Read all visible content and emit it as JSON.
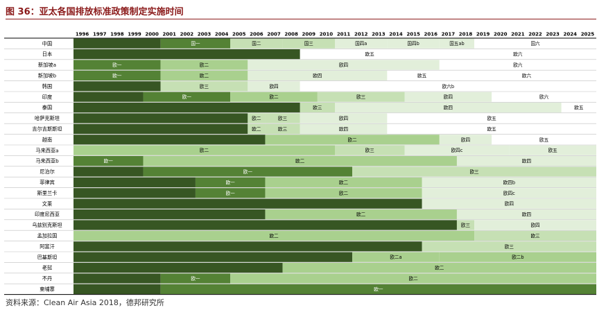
{
  "title": "图 36：亚太各国排放标准政策制定实施时间",
  "source": "资料来源：Clean Air Asia 2018，德邦研究所",
  "chart_data": {
    "type": "timeline",
    "years": [
      "1996",
      "1997",
      "1998",
      "1999",
      "2000",
      "2001",
      "2002",
      "2003",
      "2004",
      "2005",
      "2006",
      "2007",
      "2008",
      "2009",
      "2010",
      "2011",
      "2012",
      "2013",
      "2014",
      "2015",
      "2016",
      "2017",
      "2018",
      "2019",
      "2020",
      "2021",
      "2022",
      "2023",
      "2024",
      "2025"
    ],
    "colors": {
      "none": "#375623",
      "l1": "#548235",
      "l2": "#a9d08e",
      "l3": "#c6e0b4",
      "l4": "#e2efda",
      "l5": "#ffffff"
    },
    "rows": [
      {
        "country": "中国",
        "segments": [
          {
            "start": 1996,
            "end": 2000
          },
          {
            "start": 2001,
            "end": 2004,
            "label": "国一",
            "level": "l1"
          },
          {
            "start": 2005,
            "end": 2007,
            "label": "国二",
            "level": "l3"
          },
          {
            "start": 2008,
            "end": 2010,
            "label": "国三",
            "level": "l3"
          },
          {
            "start": 2011,
            "end": 2013,
            "label": "国四a",
            "level": "l4"
          },
          {
            "start": 2014,
            "end": 2016,
            "label": "国四b",
            "level": "l4"
          },
          {
            "start": 2017,
            "end": 2018,
            "label": "国五ab",
            "level": "l4"
          },
          {
            "start": 2019,
            "end": 2025,
            "label": "国六",
            "level": "l5"
          }
        ]
      },
      {
        "country": "日本",
        "segments": [
          {
            "start": 1996,
            "end": 2008
          },
          {
            "start": 2009,
            "end": 2016,
            "label": "欧五",
            "level": "l5"
          },
          {
            "start": 2017,
            "end": 2025,
            "label": "欧六",
            "level": "l5"
          }
        ]
      },
      {
        "country": "新加坡a",
        "segments": [
          {
            "start": 1996,
            "end": 2000,
            "label": "欧一",
            "level": "l1"
          },
          {
            "start": 2001,
            "end": 2005,
            "label": "欧二",
            "level": "l2"
          },
          {
            "start": 2006,
            "end": 2016,
            "label": "欧四",
            "level": "l4"
          },
          {
            "start": 2017,
            "end": 2025,
            "label": "欧六",
            "level": "l5"
          }
        ]
      },
      {
        "country": "新加坡b",
        "segments": [
          {
            "start": 1996,
            "end": 2000,
            "label": "欧一",
            "level": "l1"
          },
          {
            "start": 2001,
            "end": 2005,
            "label": "欧二",
            "level": "l2"
          },
          {
            "start": 2006,
            "end": 2013,
            "label": "欧四",
            "level": "l4"
          },
          {
            "start": 2014,
            "end": 2017,
            "label": "欧五",
            "level": "l5"
          },
          {
            "start": 2018,
            "end": 2025,
            "label": "欧六",
            "level": "l5"
          }
        ]
      },
      {
        "country": "韩国",
        "segments": [
          {
            "start": 1996,
            "end": 2000
          },
          {
            "start": 2001,
            "end": 2005,
            "label": "欧三",
            "level": "l3"
          },
          {
            "start": 2006,
            "end": 2008,
            "label": "欧四",
            "level": "l4"
          },
          {
            "start": 2009,
            "end": 2025,
            "label": "欧六b",
            "level": "l5"
          }
        ]
      },
      {
        "country": "印度",
        "segments": [
          {
            "start": 1996,
            "end": 1999
          },
          {
            "start": 2000,
            "end": 2004,
            "label": "欧一",
            "level": "l1"
          },
          {
            "start": 2005,
            "end": 2009,
            "label": "欧二",
            "level": "l2"
          },
          {
            "start": 2010,
            "end": 2014,
            "label": "欧三",
            "level": "l3"
          },
          {
            "start": 2015,
            "end": 2019,
            "label": "欧四",
            "level": "l4"
          },
          {
            "start": 2020,
            "end": 2025,
            "label": "欧六",
            "level": "l5"
          }
        ]
      },
      {
        "country": "泰国",
        "segments": [
          {
            "start": 1996,
            "end": 2008
          },
          {
            "start": 2009,
            "end": 2010,
            "label": "欧三",
            "level": "l3"
          },
          {
            "start": 2011,
            "end": 2023,
            "label": "欧四",
            "level": "l4"
          },
          {
            "start": 2024,
            "end": 2025,
            "label": "欧五",
            "level": "l5"
          }
        ]
      },
      {
        "country": "哈萨克斯坦",
        "segments": [
          {
            "start": 1996,
            "end": 2005
          },
          {
            "start": 2006,
            "end": 2006,
            "label": "欧二",
            "level": "l3"
          },
          {
            "start": 2007,
            "end": 2008,
            "label": "欧三",
            "level": "l3"
          },
          {
            "start": 2009,
            "end": 2013,
            "label": "欧四",
            "level": "l4"
          },
          {
            "start": 2014,
            "end": 2025,
            "label": "欧五",
            "level": "l5"
          }
        ]
      },
      {
        "country": "吉尔吉斯斯坦",
        "segments": [
          {
            "start": 1996,
            "end": 2005
          },
          {
            "start": 2006,
            "end": 2006,
            "label": "欧二",
            "level": "l3"
          },
          {
            "start": 2007,
            "end": 2008,
            "label": "欧三",
            "level": "l3"
          },
          {
            "start": 2009,
            "end": 2013,
            "label": "欧四",
            "level": "l4"
          },
          {
            "start": 2014,
            "end": 2025,
            "label": "欧五",
            "level": "l5"
          }
        ]
      },
      {
        "country": "越南",
        "segments": [
          {
            "start": 1996,
            "end": 2006
          },
          {
            "start": 2007,
            "end": 2016,
            "label": "欧二",
            "level": "l2"
          },
          {
            "start": 2017,
            "end": 2019,
            "label": "欧四",
            "level": "l4"
          },
          {
            "start": 2020,
            "end": 2025,
            "label": "欧五",
            "level": "l5"
          }
        ]
      },
      {
        "country": "马来西亚a",
        "segments": [
          {
            "start": 1996,
            "end": 2010,
            "label": "欧二",
            "level": "l2"
          },
          {
            "start": 2011,
            "end": 2014,
            "label": "欧三",
            "level": "l3"
          },
          {
            "start": 2015,
            "end": 2020,
            "label": "欧四c",
            "level": "l4"
          },
          {
            "start": 2021,
            "end": 2025,
            "label": "欧五",
            "level": "l4"
          }
        ]
      },
      {
        "country": "马来西亚b",
        "segments": [
          {
            "start": 1996,
            "end": 1999,
            "label": "欧一",
            "level": "l1"
          },
          {
            "start": 2000,
            "end": 2017,
            "label": "欧二",
            "level": "l2"
          },
          {
            "start": 2018,
            "end": 2025,
            "label": "欧四",
            "level": "l4"
          }
        ]
      },
      {
        "country": "尼泊尔",
        "segments": [
          {
            "start": 1996,
            "end": 1999
          },
          {
            "start": 2000,
            "end": 2011,
            "label": "欧一",
            "level": "l1"
          },
          {
            "start": 2012,
            "end": 2025,
            "label": "欧三",
            "level": "l3"
          }
        ]
      },
      {
        "country": "菲律宾",
        "segments": [
          {
            "start": 1996,
            "end": 2002
          },
          {
            "start": 2003,
            "end": 2006,
            "label": "欧一",
            "level": "l1"
          },
          {
            "start": 2007,
            "end": 2015,
            "label": "欧二",
            "level": "l2"
          },
          {
            "start": 2016,
            "end": 2025,
            "label": "欧四b",
            "level": "l4"
          }
        ]
      },
      {
        "country": "斯里兰卡",
        "segments": [
          {
            "start": 1996,
            "end": 2002
          },
          {
            "start": 2003,
            "end": 2006,
            "label": "欧一",
            "level": "l1"
          },
          {
            "start": 2007,
            "end": 2015,
            "label": "欧二",
            "level": "l2"
          },
          {
            "start": 2016,
            "end": 2025,
            "label": "欧四c",
            "level": "l4"
          }
        ]
      },
      {
        "country": "文莱",
        "segments": [
          {
            "start": 1996,
            "end": 2015
          },
          {
            "start": 2016,
            "end": 2025,
            "label": "欧四",
            "level": "l4"
          }
        ]
      },
      {
        "country": "印度尼西亚",
        "segments": [
          {
            "start": 1996,
            "end": 2006
          },
          {
            "start": 2007,
            "end": 2017,
            "label": "欧二",
            "level": "l2"
          },
          {
            "start": 2018,
            "end": 2025,
            "label": "欧四",
            "level": "l4"
          }
        ]
      },
      {
        "country": "乌兹别克斯坦",
        "segments": [
          {
            "start": 1996,
            "end": 2017
          },
          {
            "start": 2018,
            "end": 2018,
            "label": "欧三",
            "level": "l3"
          },
          {
            "start": 2019,
            "end": 2025,
            "label": "欧四",
            "level": "l4"
          }
        ]
      },
      {
        "country": "孟加拉国",
        "segments": [
          {
            "start": 1996,
            "end": 2018,
            "label": "欧二",
            "level": "l2"
          },
          {
            "start": 2019,
            "end": 2025,
            "label": "欧三",
            "level": "l3"
          }
        ]
      },
      {
        "country": "阿富汗",
        "segments": [
          {
            "start": 1996,
            "end": 2015
          },
          {
            "start": 2016,
            "end": 2025,
            "label": "欧三",
            "level": "l3"
          }
        ]
      },
      {
        "country": "巴基斯坦",
        "segments": [
          {
            "start": 1996,
            "end": 2011
          },
          {
            "start": 2012,
            "end": 2016,
            "label": "欧二a",
            "level": "l2"
          },
          {
            "start": 2017,
            "end": 2025,
            "label": "欧二b",
            "level": "l2"
          }
        ]
      },
      {
        "country": "老挝",
        "segments": [
          {
            "start": 1996,
            "end": 2007
          },
          {
            "start": 2008,
            "end": 2025,
            "label": "欧二",
            "level": "l2"
          }
        ]
      },
      {
        "country": "不丹",
        "segments": [
          {
            "start": 1996,
            "end": 2000
          },
          {
            "start": 2001,
            "end": 2004,
            "label": "欧一",
            "level": "l1"
          },
          {
            "start": 2005,
            "end": 2025,
            "label": "欧二",
            "level": "l2"
          }
        ]
      },
      {
        "country": "柬埔寨",
        "segments": [
          {
            "start": 1996,
            "end": 2000
          },
          {
            "start": 2001,
            "end": 2025,
            "label": "欧一",
            "level": "l1"
          }
        ]
      }
    ]
  }
}
